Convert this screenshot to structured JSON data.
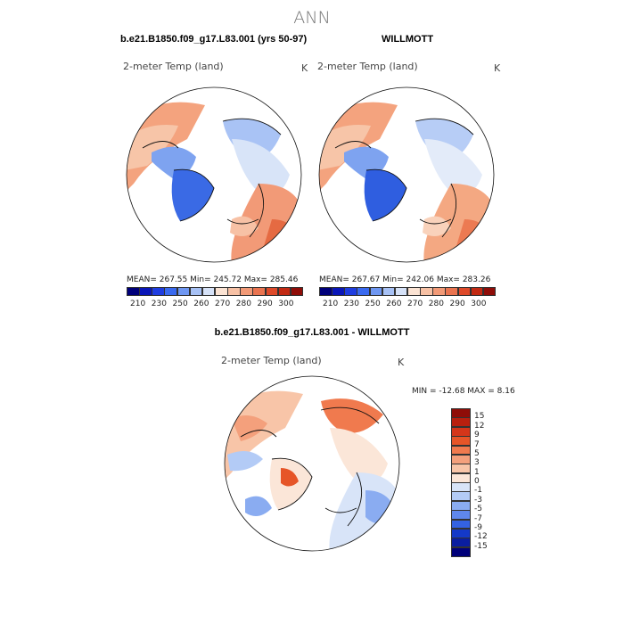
{
  "page": {
    "title": "ANN",
    "left_header": "b.e21.B1850.f09_g17.L83.001 (yrs 50-97)",
    "right_header": "WILLMOTT",
    "diff_header": "b.e21.B1850.f09_g17.L83.001 - WILLMOTT"
  },
  "panels": [
    {
      "variable": "2-meter Temp (land)",
      "units": "K",
      "stats": "MEAN= 267.55   Min= 245.72   Max= 285.46"
    },
    {
      "variable": "2-meter Temp (land)",
      "units": "K",
      "stats": "MEAN= 267.67   Min= 242.06   Max= 283.26"
    },
    {
      "variable": "2-meter Temp (land)",
      "units": "K",
      "stats": "MIN = -12.68  MAX =    8.16"
    }
  ],
  "colorbar_abs": {
    "ticks": [
      "210",
      "230",
      "250",
      "260",
      "270",
      "280",
      "290",
      "300"
    ],
    "colors": [
      "#00007a",
      "#0a16b8",
      "#1f3de0",
      "#3a6af0",
      "#6f97f2",
      "#a7c1f5",
      "#d6e2f8",
      "#fbe3d3",
      "#f7c1a5",
      "#f29a77",
      "#ea7450",
      "#de4a2a",
      "#c22a13",
      "#8f0d08"
    ]
  },
  "colorbar_diff": {
    "labels": [
      "15",
      "12",
      "9",
      "7",
      "5",
      "3",
      "1",
      "0",
      "-1",
      "-3",
      "-5",
      "-7",
      "-9",
      "-12",
      "-15"
    ],
    "colors": [
      "#8f0d08",
      "#b8200f",
      "#d4361a",
      "#e65528",
      "#f07a4e",
      "#f4a07c",
      "#f8c5a8",
      "#fbe6d8",
      "#d8e4f8",
      "#b3cbf6",
      "#8aacf1",
      "#5f87ec",
      "#3462e2",
      "#1439c8",
      "#0a1ea0",
      "#00007a"
    ]
  }
}
